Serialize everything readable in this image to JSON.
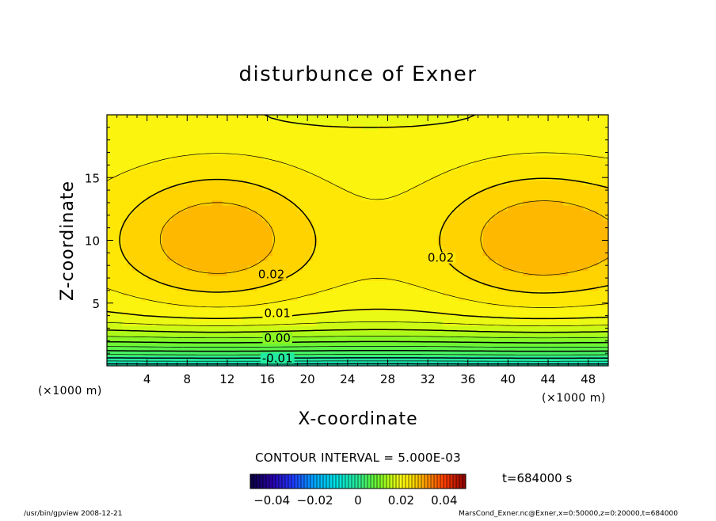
{
  "chart_data": {
    "type": "heatmap",
    "title": "disturbunce of Exner",
    "xlabel": "X-coordinate",
    "ylabel": "Z-coordinate",
    "x_unit": "(×1000 m)",
    "y_unit": "(×1000 m)",
    "xlim": [
      0,
      50
    ],
    "ylim": [
      0,
      20
    ],
    "x_ticks": [
      4,
      8,
      12,
      16,
      20,
      24,
      28,
      32,
      36,
      40,
      44,
      48
    ],
    "x_tick_labels": [
      "4",
      "8",
      "12",
      "16",
      "20",
      "24",
      "28",
      "32",
      "36",
      "40",
      "44",
      "48"
    ],
    "y_ticks": [
      5,
      10,
      15
    ],
    "y_tick_labels": [
      "5",
      "10",
      "15"
    ],
    "contour_interval_text": "CONTOUR INTERVAL = 5.000E-03",
    "contour_labels": [
      {
        "text": "0.02",
        "x": 16.4,
        "y": 7.3
      },
      {
        "text": "0.02",
        "x": 33.3,
        "y": 8.6
      },
      {
        "text": "0.01",
        "x": 17.0,
        "y": 4.2
      },
      {
        "text": "0.00",
        "x": 17.0,
        "y": 2.2
      },
      {
        "text": "-0.01",
        "x": 17.0,
        "y": 0.6
      }
    ],
    "colorbar": {
      "range": [
        -0.05,
        0.05
      ],
      "tick_values": [
        -0.04,
        -0.02,
        0,
        0.02,
        0.04
      ],
      "tick_labels": [
        "−0.04",
        "−0.02",
        "0",
        "0.02",
        "0.04"
      ]
    },
    "time_label": "t=684000 s"
  },
  "footer": {
    "left": "/usr/bin/gpview   2008-12-21",
    "right": "MarsCond_Exner.nc@Exner,x=0:50000,z=0:20000,t=684000"
  }
}
